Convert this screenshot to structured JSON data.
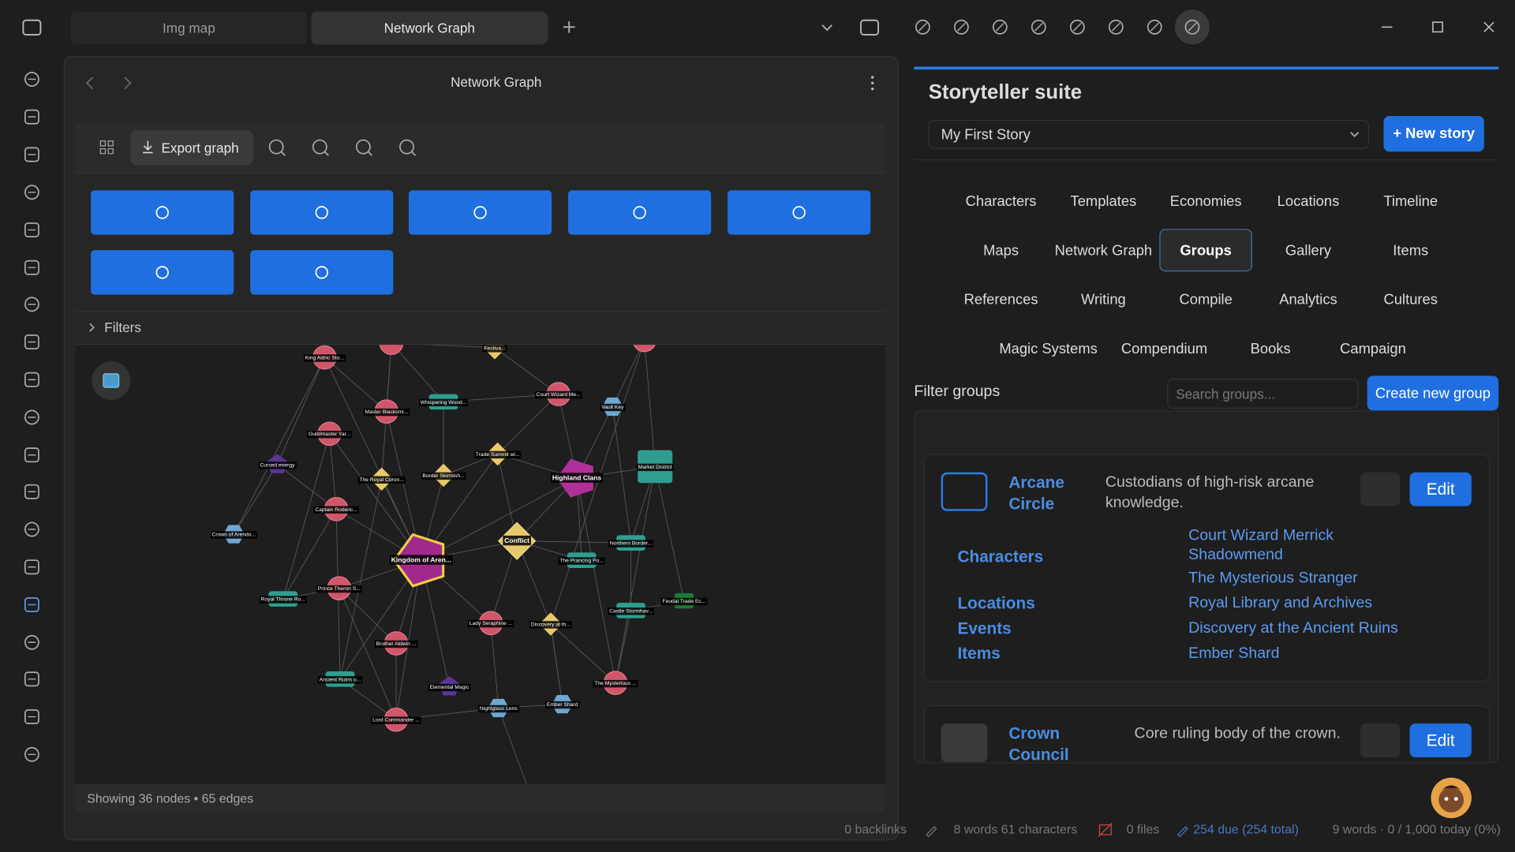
{
  "tabs": [
    "Img map",
    "Network Graph"
  ],
  "view": {
    "title": "Network Graph",
    "export": "Export graph",
    "filters": "Filters",
    "nodes": [
      "King Aldric Sto...",
      "Festiva...",
      "Master Blacksmi...",
      "Whispering Wood...",
      "Court Wizard Me...",
      "Vault Key",
      "Guildmaster Yar...",
      "Cursed energy",
      "Trade Summit wi...",
      "Highland Clans",
      "Market District",
      "The Royal Coron...",
      "Border Skirmish...",
      "Captain Roderic...",
      "Crown of Arendo...",
      "Kingdom of Aren...",
      "Conflict",
      "The Prancing Po...",
      "Northern Border...",
      "Prince Theron S...",
      "Royal Throne Ro...",
      "Castle Stormhav...",
      "Feudal Trade Ec...",
      "Lady Seraphine ...",
      "Discovery at th...",
      "Brother Aldwin ...",
      "Ancient Ruins o...",
      "Elemental Magic",
      "The Mysterious ...",
      "Nightglass Lens",
      "Ember Shard",
      "Lord Commander ..."
    ],
    "footer": "Showing 36 nodes • 65 edges"
  },
  "sidebar": {
    "title": "Storyteller suite",
    "story": "My First Story",
    "new_story": "+ New story",
    "tabs": [
      "Characters",
      "Templates",
      "Economies",
      "Locations",
      "Timeline",
      "Maps",
      "Network Graph",
      "Groups",
      "Gallery",
      "Items",
      "References",
      "Writing",
      "Compile",
      "Analytics",
      "Cultures",
      "Magic Systems",
      "Compendium",
      "Books",
      "Campaign"
    ],
    "active_tab": "Groups",
    "filter_label": "Filter groups",
    "search_placeholder": "Search groups...",
    "create_group": "Create new group",
    "groups": [
      {
        "name": "Arcane Circle",
        "description": "Custodians of high-risk arcane knowledge.",
        "expanded": true,
        "edit": "Edit",
        "sections": [
          {
            "label": "Characters",
            "items": [
              "Court Wizard Merrick Shadowmend",
              "The Mysterious Stranger"
            ]
          },
          {
            "label": "Locations",
            "items": [
              "Royal Library and Archives"
            ]
          },
          {
            "label": "Events",
            "items": [
              "Discovery at the Ancient Ruins"
            ]
          },
          {
            "label": "Items",
            "items": [
              "Ember Shard"
            ]
          }
        ]
      },
      {
        "name": "Crown Council",
        "description": "Core ruling body of the crown.",
        "expanded": false,
        "edit": "Edit",
        "sections": []
      }
    ]
  },
  "status_bar": {
    "backlinks": "0 backlinks",
    "counts": "8 words 61 characters",
    "files": "0 files",
    "due": "254 due (254 total)",
    "today": "9 words · 0 / 1,000 today (0%)"
  }
}
